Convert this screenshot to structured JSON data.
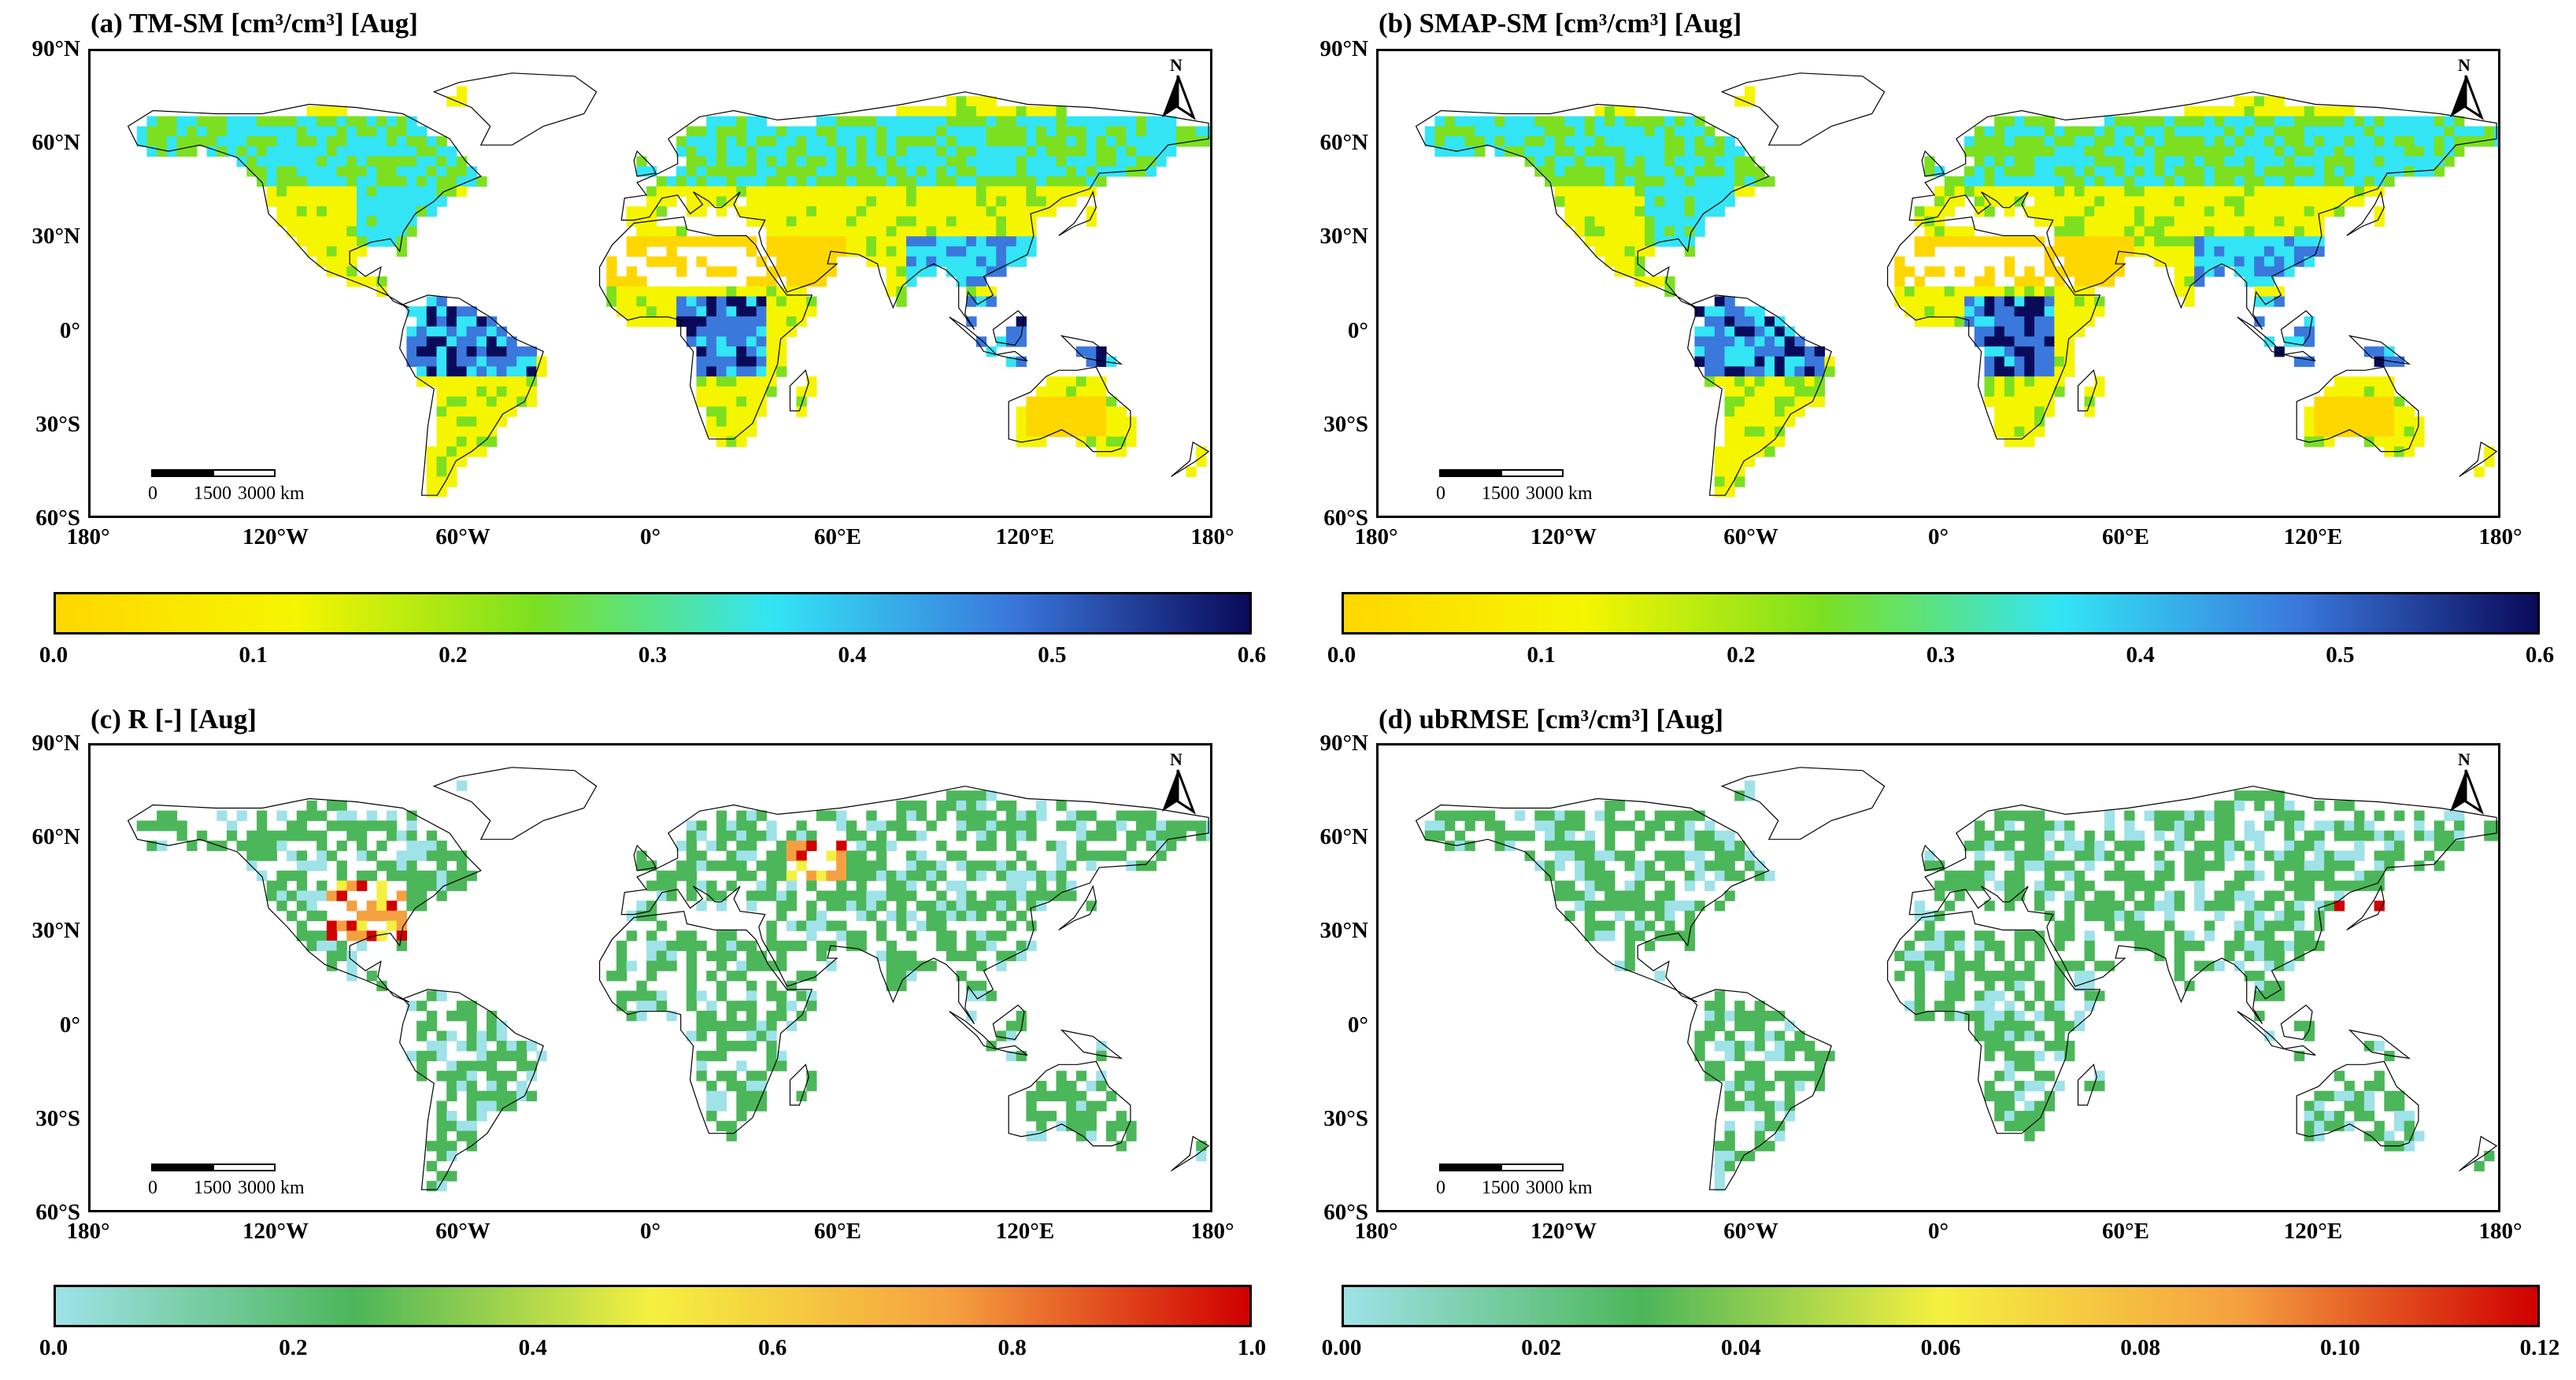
{
  "panels": [
    {
      "id": "a",
      "title": "(a) TM-SM [cm³/cm³] [Aug]",
      "colorbar": {
        "ticks": [
          "0.0",
          "0.1",
          "0.2",
          "0.3",
          "0.4",
          "0.5",
          "0.6"
        ],
        "colors": [
          "#FFD700",
          "#F5F500",
          "#7CE020",
          "#33E5F5",
          "#3A78DC",
          "#0A0A5A"
        ]
      },
      "palette": "moisture"
    },
    {
      "id": "b",
      "title": "(b) SMAP-SM [cm³/cm³] [Aug]",
      "colorbar": {
        "ticks": [
          "0.0",
          "0.1",
          "0.2",
          "0.3",
          "0.4",
          "0.5",
          "0.6"
        ],
        "colors": [
          "#FFD700",
          "#F5F500",
          "#7CE020",
          "#33E5F5",
          "#3A78DC",
          "#0A0A5A"
        ]
      },
      "palette": "moisture"
    },
    {
      "id": "c",
      "title": "(c) R [-] [Aug]",
      "colorbar": {
        "ticks": [
          "0.0",
          "0.2",
          "0.4",
          "0.6",
          "0.8",
          "1.0"
        ],
        "colors": [
          "#9FE2E8",
          "#4CB65A",
          "#F5F040",
          "#F5A040",
          "#D00000"
        ]
      },
      "palette": "metric"
    },
    {
      "id": "d",
      "title": "(d) ubRMSE [cm³/cm³] [Aug]",
      "colorbar": {
        "ticks": [
          "0.00",
          "0.02",
          "0.04",
          "0.06",
          "0.08",
          "0.10",
          "0.12"
        ],
        "colors": [
          "#9FE2E8",
          "#4CB65A",
          "#F5F040",
          "#F5A040",
          "#D00000"
        ]
      },
      "palette": "metric"
    }
  ],
  "lat_labels": [
    "90°N",
    "60°N",
    "30°N",
    "0°",
    "30°S",
    "60°S"
  ],
  "lon_labels": [
    "180°",
    "120°W",
    "60°W",
    "0°",
    "60°E",
    "120°E",
    "180°"
  ],
  "north_label": "N",
  "scale_labels": [
    "0",
    "1500",
    "3000 km"
  ],
  "colors": {
    "land_outline": "#000000",
    "ocean": "#ffffff"
  }
}
